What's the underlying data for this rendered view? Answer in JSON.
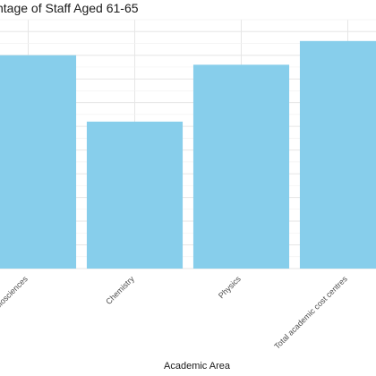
{
  "chart_data": {
    "type": "bar",
    "title": "ntage of Staff Aged 61-65",
    "xlabel": "Academic Area",
    "ylabel": "",
    "categories": [
      "Biosciences",
      "Chemistry",
      "Physics",
      "Total academic cost centres"
    ],
    "values": [
      9.0,
      6.2,
      8.6,
      9.6
    ],
    "ylim": [
      0,
      10.5
    ],
    "grid": true,
    "colors": {
      "bar": "#87ceeb",
      "grid": "#e6e6e6",
      "background": "#ffffff"
    }
  }
}
